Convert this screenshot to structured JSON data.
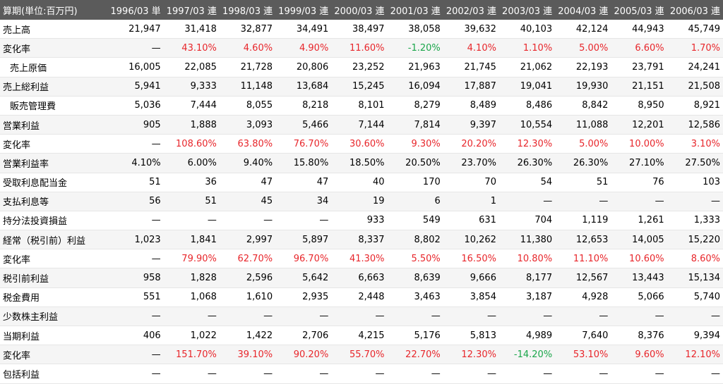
{
  "header": {
    "first": "算期(単位:百万円)",
    "periods": [
      "1996/03 単",
      "1997/03 連",
      "1998/03 連",
      "1999/03 連",
      "2000/03 連",
      "2001/03 連",
      "2002/03 連",
      "2003/03 連",
      "2004/03 連",
      "2005/03 連",
      "2006/03 連"
    ]
  },
  "rows": [
    {
      "label": "売上高",
      "indent": false,
      "cells": [
        {
          "v": "21,947"
        },
        {
          "v": "31,418"
        },
        {
          "v": "32,877"
        },
        {
          "v": "34,491"
        },
        {
          "v": "38,497"
        },
        {
          "v": "38,058"
        },
        {
          "v": "39,632"
        },
        {
          "v": "40,103"
        },
        {
          "v": "42,124"
        },
        {
          "v": "44,943"
        },
        {
          "v": "45,749"
        }
      ]
    },
    {
      "label": "変化率",
      "indent": false,
      "cells": [
        {
          "v": "—"
        },
        {
          "v": "43.10%",
          "c": "red"
        },
        {
          "v": "4.60%",
          "c": "red"
        },
        {
          "v": "4.90%",
          "c": "red"
        },
        {
          "v": "11.60%",
          "c": "red"
        },
        {
          "v": "-1.20%",
          "c": "green"
        },
        {
          "v": "4.10%",
          "c": "red"
        },
        {
          "v": "1.10%",
          "c": "red"
        },
        {
          "v": "5.00%",
          "c": "red"
        },
        {
          "v": "6.60%",
          "c": "red"
        },
        {
          "v": "1.70%",
          "c": "red"
        }
      ]
    },
    {
      "label": "売上原価",
      "indent": true,
      "cells": [
        {
          "v": "16,005"
        },
        {
          "v": "22,085"
        },
        {
          "v": "21,728"
        },
        {
          "v": "20,806"
        },
        {
          "v": "23,252"
        },
        {
          "v": "21,963"
        },
        {
          "v": "21,745"
        },
        {
          "v": "21,062"
        },
        {
          "v": "22,193"
        },
        {
          "v": "23,791"
        },
        {
          "v": "24,241"
        }
      ]
    },
    {
      "label": "売上総利益",
      "indent": false,
      "cells": [
        {
          "v": "5,941"
        },
        {
          "v": "9,333"
        },
        {
          "v": "11,148"
        },
        {
          "v": "13,684"
        },
        {
          "v": "15,245"
        },
        {
          "v": "16,094"
        },
        {
          "v": "17,887"
        },
        {
          "v": "19,041"
        },
        {
          "v": "19,930"
        },
        {
          "v": "21,151"
        },
        {
          "v": "21,508"
        }
      ]
    },
    {
      "label": "販売管理費",
      "indent": true,
      "cells": [
        {
          "v": "5,036"
        },
        {
          "v": "7,444"
        },
        {
          "v": "8,055"
        },
        {
          "v": "8,218"
        },
        {
          "v": "8,101"
        },
        {
          "v": "8,279"
        },
        {
          "v": "8,489"
        },
        {
          "v": "8,486"
        },
        {
          "v": "8,842"
        },
        {
          "v": "8,950"
        },
        {
          "v": "8,921"
        }
      ]
    },
    {
      "label": "営業利益",
      "indent": false,
      "cells": [
        {
          "v": "905"
        },
        {
          "v": "1,888"
        },
        {
          "v": "3,093"
        },
        {
          "v": "5,466"
        },
        {
          "v": "7,144"
        },
        {
          "v": "7,814"
        },
        {
          "v": "9,397"
        },
        {
          "v": "10,554"
        },
        {
          "v": "11,088"
        },
        {
          "v": "12,201"
        },
        {
          "v": "12,586"
        }
      ]
    },
    {
      "label": "変化率",
      "indent": false,
      "cells": [
        {
          "v": "—"
        },
        {
          "v": "108.60%",
          "c": "red"
        },
        {
          "v": "63.80%",
          "c": "red"
        },
        {
          "v": "76.70%",
          "c": "red"
        },
        {
          "v": "30.60%",
          "c": "red"
        },
        {
          "v": "9.30%",
          "c": "red"
        },
        {
          "v": "20.20%",
          "c": "red"
        },
        {
          "v": "12.30%",
          "c": "red"
        },
        {
          "v": "5.00%",
          "c": "red"
        },
        {
          "v": "10.00%",
          "c": "red"
        },
        {
          "v": "3.10%",
          "c": "red"
        }
      ]
    },
    {
      "label": "営業利益率",
      "indent": false,
      "cells": [
        {
          "v": "4.10%"
        },
        {
          "v": "6.00%"
        },
        {
          "v": "9.40%"
        },
        {
          "v": "15.80%"
        },
        {
          "v": "18.50%"
        },
        {
          "v": "20.50%"
        },
        {
          "v": "23.70%"
        },
        {
          "v": "26.30%"
        },
        {
          "v": "26.30%"
        },
        {
          "v": "27.10%"
        },
        {
          "v": "27.50%"
        }
      ]
    },
    {
      "label": "受取利息配当金",
      "indent": false,
      "cells": [
        {
          "v": "51"
        },
        {
          "v": "36"
        },
        {
          "v": "47"
        },
        {
          "v": "47"
        },
        {
          "v": "40"
        },
        {
          "v": "170"
        },
        {
          "v": "70"
        },
        {
          "v": "54"
        },
        {
          "v": "51"
        },
        {
          "v": "76"
        },
        {
          "v": "103"
        }
      ]
    },
    {
      "label": "支払利息等",
      "indent": false,
      "cells": [
        {
          "v": "56"
        },
        {
          "v": "51"
        },
        {
          "v": "45"
        },
        {
          "v": "34"
        },
        {
          "v": "19"
        },
        {
          "v": "6"
        },
        {
          "v": "1"
        },
        {
          "v": "—"
        },
        {
          "v": "—"
        },
        {
          "v": "—"
        },
        {
          "v": "—"
        }
      ]
    },
    {
      "label": "持分法投資損益",
      "indent": false,
      "cells": [
        {
          "v": "—"
        },
        {
          "v": "—"
        },
        {
          "v": "—"
        },
        {
          "v": "—"
        },
        {
          "v": "933"
        },
        {
          "v": "549"
        },
        {
          "v": "631"
        },
        {
          "v": "704"
        },
        {
          "v": "1,119"
        },
        {
          "v": "1,261"
        },
        {
          "v": "1,333"
        }
      ]
    },
    {
      "label": "経常（税引前）利益",
      "indent": false,
      "cells": [
        {
          "v": "1,023"
        },
        {
          "v": "1,841"
        },
        {
          "v": "2,997"
        },
        {
          "v": "5,897"
        },
        {
          "v": "8,337"
        },
        {
          "v": "8,802"
        },
        {
          "v": "10,262"
        },
        {
          "v": "11,380"
        },
        {
          "v": "12,653"
        },
        {
          "v": "14,005"
        },
        {
          "v": "15,220"
        }
      ]
    },
    {
      "label": "変化率",
      "indent": false,
      "cells": [
        {
          "v": "—"
        },
        {
          "v": "79.90%",
          "c": "red"
        },
        {
          "v": "62.70%",
          "c": "red"
        },
        {
          "v": "96.70%",
          "c": "red"
        },
        {
          "v": "41.30%",
          "c": "red"
        },
        {
          "v": "5.50%",
          "c": "red"
        },
        {
          "v": "16.50%",
          "c": "red"
        },
        {
          "v": "10.80%",
          "c": "red"
        },
        {
          "v": "11.10%",
          "c": "red"
        },
        {
          "v": "10.60%",
          "c": "red"
        },
        {
          "v": "8.60%",
          "c": "red"
        }
      ]
    },
    {
      "label": "税引前利益",
      "indent": false,
      "cells": [
        {
          "v": "958"
        },
        {
          "v": "1,828"
        },
        {
          "v": "2,596"
        },
        {
          "v": "5,642"
        },
        {
          "v": "6,663"
        },
        {
          "v": "8,639"
        },
        {
          "v": "9,666"
        },
        {
          "v": "8,177"
        },
        {
          "v": "12,567"
        },
        {
          "v": "13,443"
        },
        {
          "v": "15,134"
        }
      ]
    },
    {
      "label": "税金費用",
      "indent": false,
      "cells": [
        {
          "v": "551"
        },
        {
          "v": "1,068"
        },
        {
          "v": "1,610"
        },
        {
          "v": "2,935"
        },
        {
          "v": "2,448"
        },
        {
          "v": "3,463"
        },
        {
          "v": "3,854"
        },
        {
          "v": "3,187"
        },
        {
          "v": "4,928"
        },
        {
          "v": "5,066"
        },
        {
          "v": "5,740"
        }
      ]
    },
    {
      "label": "少数株主利益",
      "indent": false,
      "cells": [
        {
          "v": "—"
        },
        {
          "v": "—"
        },
        {
          "v": "—"
        },
        {
          "v": "—"
        },
        {
          "v": "—"
        },
        {
          "v": "—"
        },
        {
          "v": "—"
        },
        {
          "v": "—"
        },
        {
          "v": "—"
        },
        {
          "v": "—"
        },
        {
          "v": "—"
        }
      ]
    },
    {
      "label": "当期利益",
      "indent": false,
      "cells": [
        {
          "v": "406"
        },
        {
          "v": "1,022"
        },
        {
          "v": "1,422"
        },
        {
          "v": "2,706"
        },
        {
          "v": "4,215"
        },
        {
          "v": "5,176"
        },
        {
          "v": "5,813"
        },
        {
          "v": "4,989"
        },
        {
          "v": "7,640"
        },
        {
          "v": "8,376"
        },
        {
          "v": "9,394"
        }
      ]
    },
    {
      "label": "変化率",
      "indent": false,
      "cells": [
        {
          "v": "—"
        },
        {
          "v": "151.70%",
          "c": "red"
        },
        {
          "v": "39.10%",
          "c": "red"
        },
        {
          "v": "90.20%",
          "c": "red"
        },
        {
          "v": "55.70%",
          "c": "red"
        },
        {
          "v": "22.70%",
          "c": "red"
        },
        {
          "v": "12.30%",
          "c": "red"
        },
        {
          "v": "-14.20%",
          "c": "green"
        },
        {
          "v": "53.10%",
          "c": "red"
        },
        {
          "v": "9.60%",
          "c": "red"
        },
        {
          "v": "12.10%",
          "c": "red"
        }
      ]
    },
    {
      "label": "包括利益",
      "indent": false,
      "cells": [
        {
          "v": "—"
        },
        {
          "v": "—"
        },
        {
          "v": "—"
        },
        {
          "v": "—"
        },
        {
          "v": "—"
        },
        {
          "v": "—"
        },
        {
          "v": "—"
        },
        {
          "v": "—"
        },
        {
          "v": "—"
        },
        {
          "v": "—"
        },
        {
          "v": "—"
        }
      ]
    }
  ],
  "colors": {
    "header_bg": "#5b5b5b",
    "positive": "#e8262b",
    "negative": "#1aa64a"
  }
}
